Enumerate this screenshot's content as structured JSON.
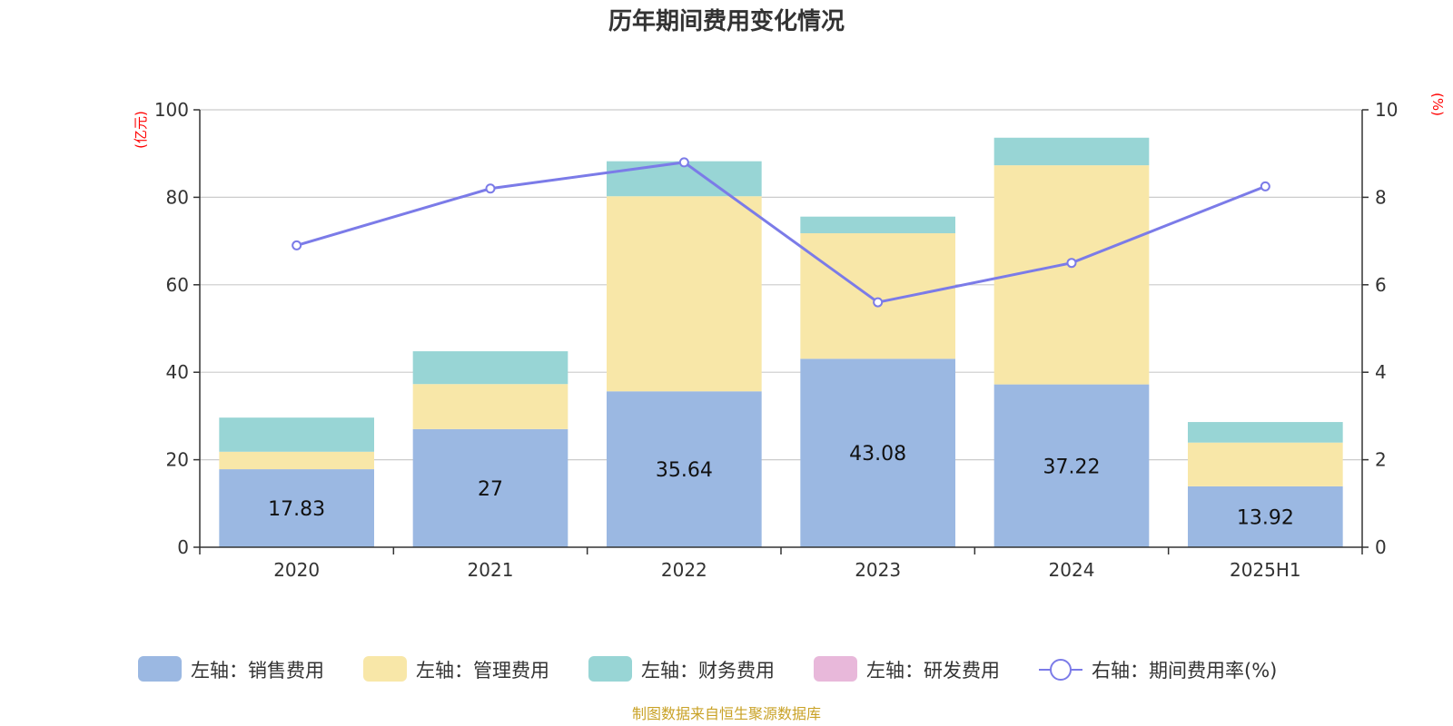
{
  "chart_data": {
    "type": "bar",
    "title": "历年期间费用变化情况",
    "categories": [
      "2020",
      "2021",
      "2022",
      "2023",
      "2024",
      "2025H1"
    ],
    "left_axis": {
      "unit": "(亿元)",
      "ylim": [
        0,
        100
      ],
      "ticks": [
        "0",
        "20",
        "40",
        "60",
        "80",
        "100"
      ]
    },
    "right_axis": {
      "unit": "(%)",
      "ylim": [
        0,
        10
      ],
      "ticks": [
        "0",
        "2",
        "4",
        "6",
        "8",
        "10"
      ]
    },
    "series": [
      {
        "name": "左轴：销售费用",
        "type": "bar",
        "stack": true,
        "axis": "left",
        "color": "#9bb8e2",
        "values": [
          17.83,
          27,
          35.64,
          43.08,
          37.22,
          13.92
        ],
        "labels": [
          "17.83",
          "27",
          "35.64",
          "43.08",
          "37.22",
          "13.92"
        ]
      },
      {
        "name": "左轴：管理费用",
        "type": "bar",
        "stack": true,
        "axis": "left",
        "color": "#f8e7a8",
        "values": [
          4.0,
          10.3,
          44.6,
          28.7,
          50.1,
          10.0
        ]
      },
      {
        "name": "左轴：财务费用",
        "type": "bar",
        "stack": true,
        "axis": "left",
        "color": "#98d5d5",
        "values": [
          7.8,
          7.5,
          8.0,
          3.8,
          6.3,
          4.7
        ]
      },
      {
        "name": "左轴：研发费用",
        "type": "bar",
        "stack": true,
        "axis": "left",
        "color": "#e8b8da",
        "values": [
          0,
          0,
          0,
          0,
          0,
          0
        ]
      },
      {
        "name": "右轴：期间费用率(%)",
        "type": "line",
        "axis": "right",
        "color": "#7b7be8",
        "values": [
          6.9,
          8.2,
          8.8,
          5.6,
          6.5,
          8.25
        ]
      }
    ],
    "legend": "bottom-center",
    "grid": true
  },
  "source_note": "制图数据来自恒生聚源数据库"
}
